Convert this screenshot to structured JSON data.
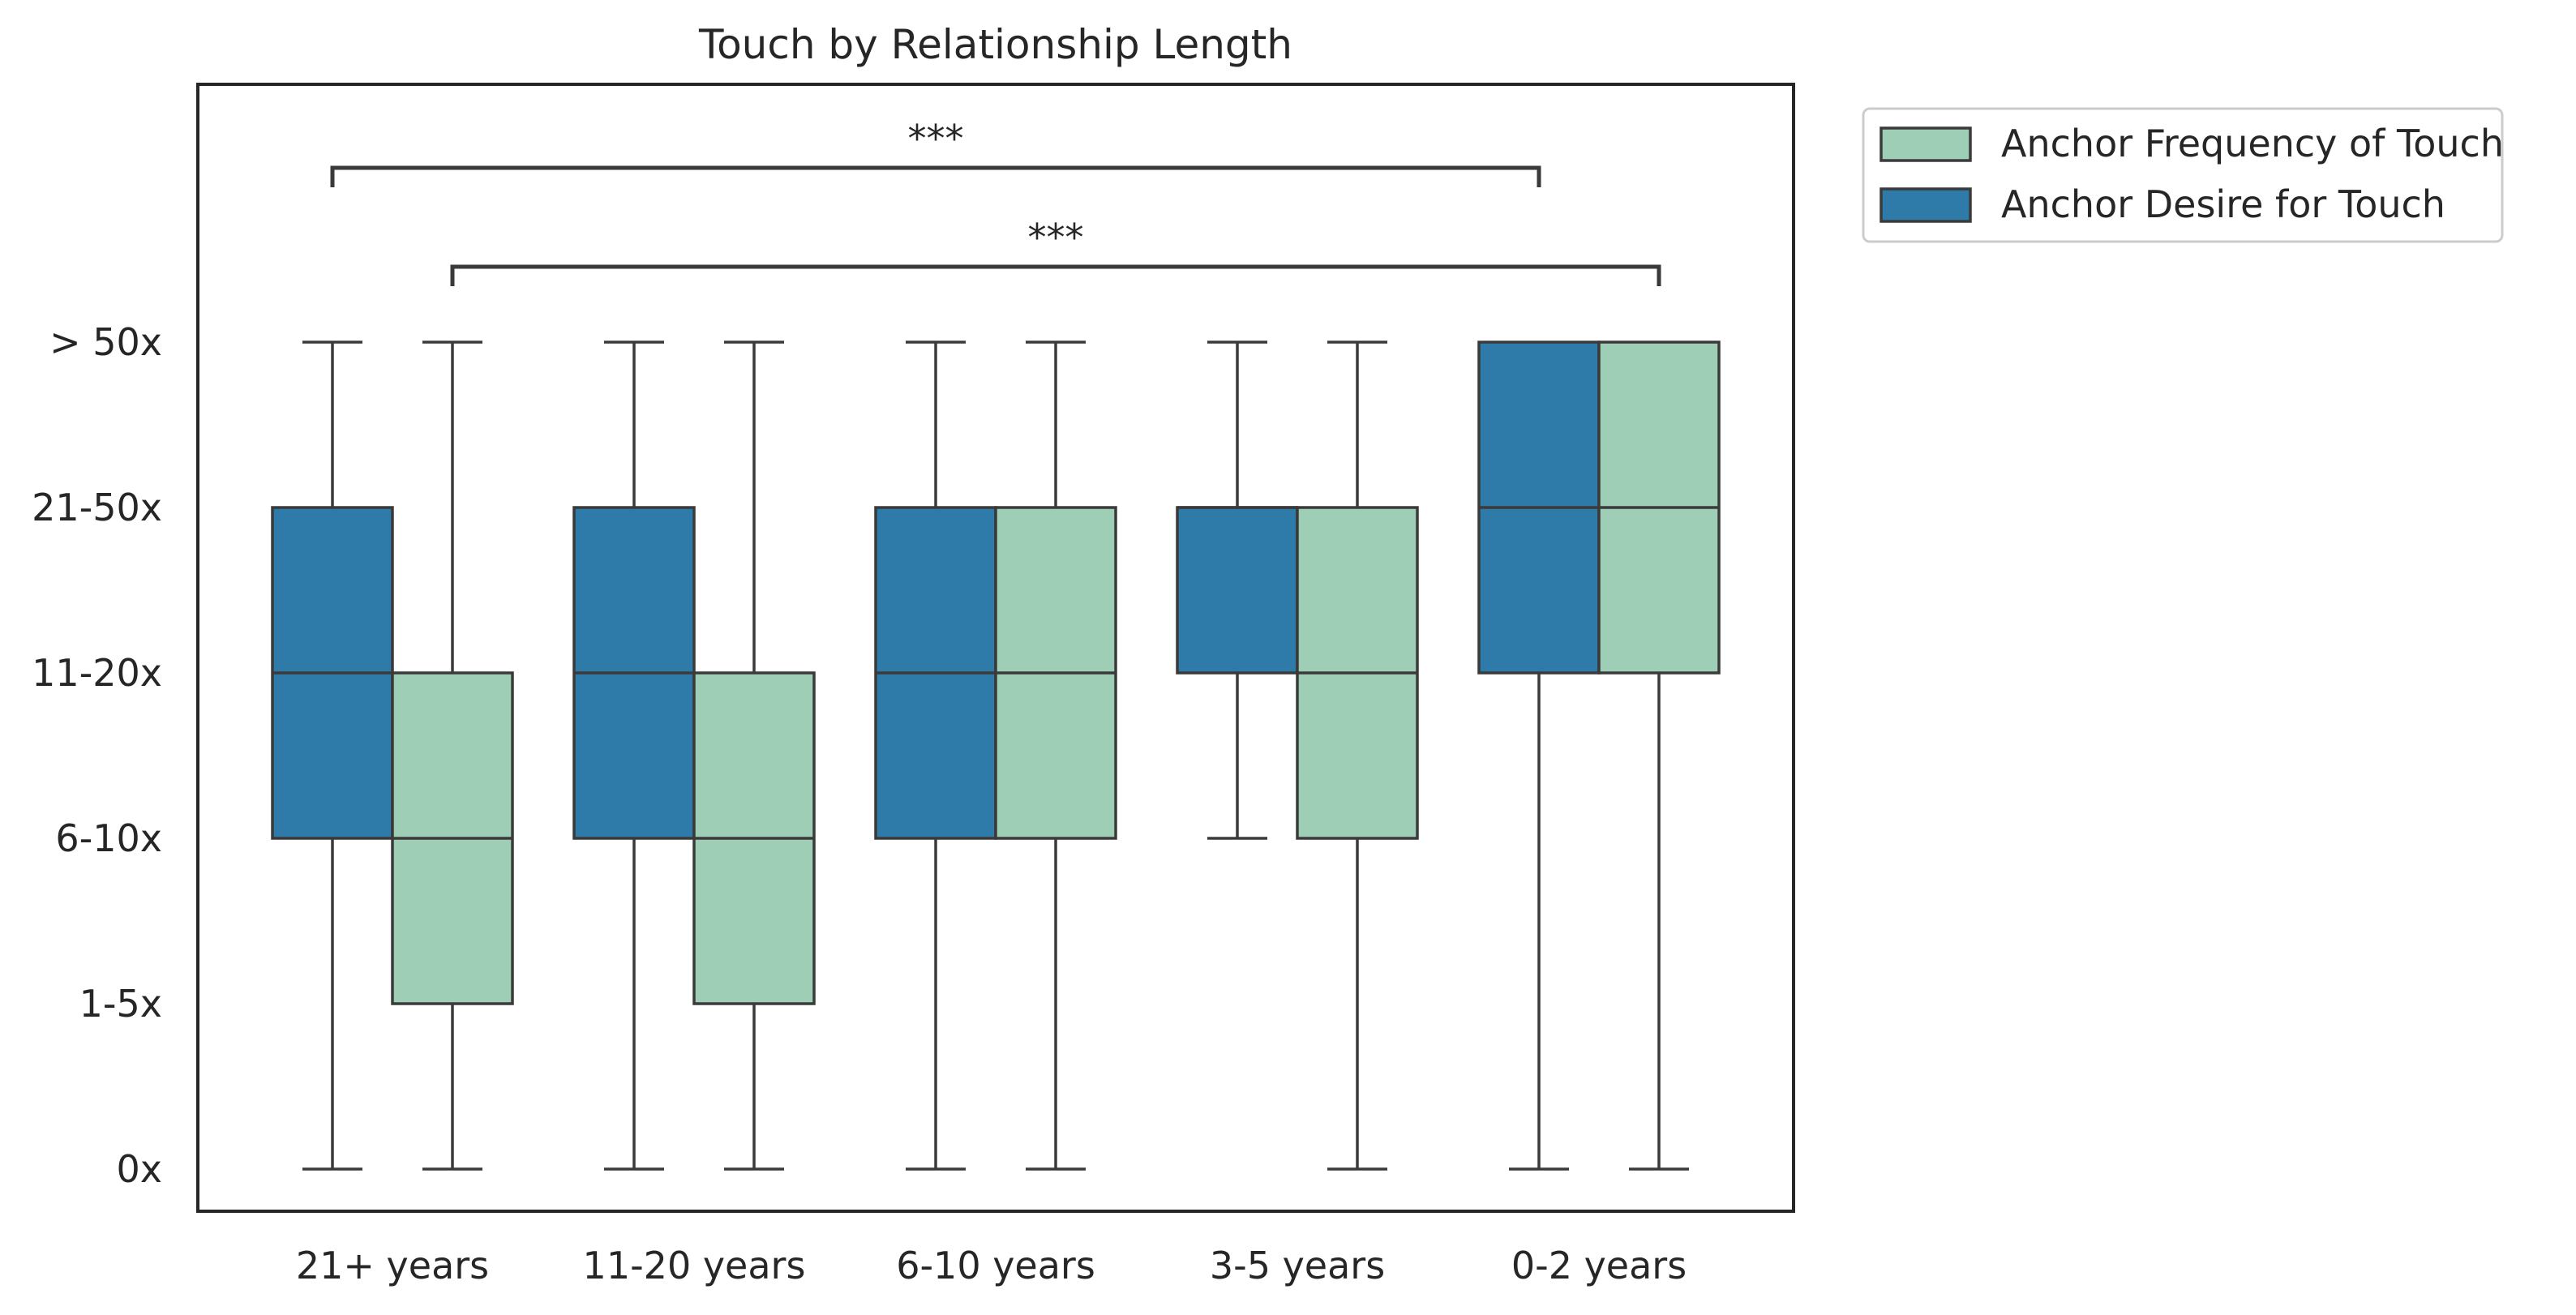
{
  "chart_data": {
    "type": "box",
    "title": "Touch by Relationship Length",
    "xlabel": "",
    "ylabel": "",
    "categories": [
      "21+ years",
      "11-20 years",
      "6-10 years",
      "3-5 years",
      "0-2 years"
    ],
    "y_levels": [
      "0x",
      "1-5x",
      "6-10x",
      "11-20x",
      "21-50x",
      "> 50x"
    ],
    "series": [
      {
        "name": "Anchor Desire for Touch",
        "color": "#2e7aa8",
        "boxes": [
          {
            "whisker_low": "0x",
            "q1": "6-10x",
            "median": "11-20x",
            "q3": "21-50x",
            "whisker_high": "> 50x"
          },
          {
            "whisker_low": "0x",
            "q1": "6-10x",
            "median": "11-20x",
            "q3": "21-50x",
            "whisker_high": "> 50x"
          },
          {
            "whisker_low": "0x",
            "q1": "6-10x",
            "median": "11-20x",
            "q3": "21-50x",
            "whisker_high": "> 50x"
          },
          {
            "whisker_low": "6-10x",
            "q1": "11-20x",
            "median": "21-50x",
            "q3": "21-50x",
            "whisker_high": "> 50x"
          },
          {
            "whisker_low": "0x",
            "q1": "11-20x",
            "median": "21-50x",
            "q3": "> 50x",
            "whisker_high": "> 50x"
          }
        ]
      },
      {
        "name": "Anchor Frequency of Touch",
        "color": "#9ecfb6",
        "boxes": [
          {
            "whisker_low": "0x",
            "q1": "1-5x",
            "median": "6-10x",
            "q3": "11-20x",
            "whisker_high": "> 50x"
          },
          {
            "whisker_low": "0x",
            "q1": "1-5x",
            "median": "6-10x",
            "q3": "11-20x",
            "whisker_high": "> 50x"
          },
          {
            "whisker_low": "0x",
            "q1": "6-10x",
            "median": "11-20x",
            "q3": "21-50x",
            "whisker_high": "> 50x"
          },
          {
            "whisker_low": "0x",
            "q1": "6-10x",
            "median": "11-20x",
            "q3": "21-50x",
            "whisker_high": "> 50x"
          },
          {
            "whisker_low": "0x",
            "q1": "11-20x",
            "median": "21-50x",
            "q3": "> 50x",
            "whisker_high": "> 50x"
          }
        ]
      }
    ],
    "series_order_within_group": {
      "21+ years": [
        "Anchor Desire for Touch",
        "Anchor Frequency of Touch"
      ],
      "11-20 years": [
        "Anchor Desire for Touch",
        "Anchor Frequency of Touch"
      ],
      "6-10 years": [
        "Anchor Desire for Touch",
        "Anchor Frequency of Touch"
      ],
      "3-5 years": [
        "Anchor Desire for Touch",
        "Anchor Frequency of Touch"
      ],
      "0-2 years": [
        "Anchor Desire for Touch",
        "Anchor Frequency of Touch"
      ]
    },
    "legend": {
      "placement": "outside-top-right",
      "entries": [
        {
          "label": "Anchor Frequency of Touch",
          "color": "#9ecfb6"
        },
        {
          "label": "Anchor Desire for Touch",
          "color": "#2e7aa8"
        }
      ]
    },
    "significance": [
      {
        "label": "***",
        "from_category": "21+ years",
        "to_category": "0-2 years",
        "from_series": "Anchor Desire for Touch",
        "to_series": "Anchor Desire for Touch"
      },
      {
        "label": "***",
        "from_category": "21+ years",
        "to_category": "0-2 years",
        "from_series": "Anchor Frequency of Touch",
        "to_series": "Anchor Frequency of Touch"
      }
    ],
    "grid": false,
    "colors": {
      "edge": "#3a3a3a",
      "frame": "#262626",
      "text": "#262626"
    }
  }
}
